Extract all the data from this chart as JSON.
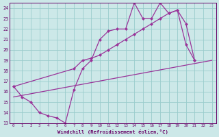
{
  "xlabel": "Windchill (Refroidissement éolien,°C)",
  "xlim": [
    -0.5,
    23.5
  ],
  "ylim": [
    13,
    24.5
  ],
  "yticks": [
    13,
    14,
    15,
    16,
    17,
    18,
    19,
    20,
    21,
    22,
    23,
    24
  ],
  "xticks": [
    0,
    1,
    2,
    3,
    4,
    5,
    6,
    7,
    8,
    9,
    10,
    11,
    12,
    13,
    14,
    15,
    16,
    17,
    18,
    19,
    20,
    21,
    22,
    23
  ],
  "bg_color": "#cce8e8",
  "line_color": "#993399",
  "grid_color": "#99cccc",
  "line1_x": [
    0,
    1,
    2,
    3,
    4,
    5,
    6,
    7,
    8,
    9,
    10,
    11,
    12,
    13,
    14,
    15,
    16,
    17,
    18,
    19,
    20,
    21
  ],
  "line1_y": [
    16.5,
    15.5,
    15.0,
    14.0,
    13.7,
    13.5,
    13.0,
    16.2,
    18.2,
    19.0,
    21.0,
    21.8,
    22.0,
    22.0,
    24.5,
    23.0,
    23.0,
    24.5,
    23.5,
    23.8,
    20.5,
    19.0
  ],
  "line2_x": [
    0,
    7,
    8,
    9,
    10,
    11,
    12,
    13,
    14,
    15,
    16,
    17,
    18,
    19,
    20,
    21
  ],
  "line2_y": [
    16.5,
    18.2,
    19.0,
    19.2,
    19.5,
    20.0,
    20.5,
    21.0,
    21.5,
    22.0,
    22.5,
    23.0,
    23.5,
    23.8,
    22.5,
    19.0
  ],
  "line3_x": [
    0,
    23
  ],
  "line3_y": [
    15.5,
    19.0
  ],
  "font_color": "#660066",
  "marker": "D",
  "markersize": 2.5
}
